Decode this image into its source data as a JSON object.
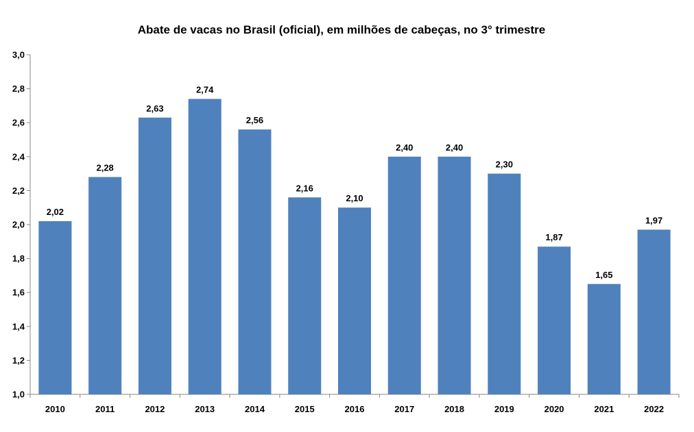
{
  "chart_data": {
    "type": "bar",
    "title": "Abate de vacas no Brasil (oficial), em milhões de cabeças, no 3° trimestre",
    "xlabel": "",
    "ylabel": "",
    "categories": [
      "2010",
      "2011",
      "2012",
      "2013",
      "2014",
      "2015",
      "2016",
      "2017",
      "2018",
      "2019",
      "2020",
      "2021",
      "2022"
    ],
    "values": [
      2.02,
      2.28,
      2.63,
      2.74,
      2.56,
      2.16,
      2.1,
      2.4,
      2.4,
      2.3,
      1.87,
      1.65,
      1.97
    ],
    "data_labels": [
      "2,02",
      "2,28",
      "2,63",
      "2,74",
      "2,56",
      "2,16",
      "2,10",
      "2,40",
      "2,40",
      "2,30",
      "1,87",
      "1,65",
      "1,97"
    ],
    "ylim": [
      1.0,
      3.0
    ],
    "yticks": [
      1.0,
      1.2,
      1.4,
      1.6,
      1.8,
      2.0,
      2.2,
      2.4,
      2.6,
      2.8,
      3.0
    ],
    "ytick_labels": [
      "1,0",
      "1,2",
      "1,4",
      "1,6",
      "1,8",
      "2,0",
      "2,2",
      "2,4",
      "2,6",
      "2,8",
      "3,0"
    ],
    "grid": false,
    "legend": "none",
    "bar_color": "#4F81BD",
    "axis_color": "#868686"
  }
}
